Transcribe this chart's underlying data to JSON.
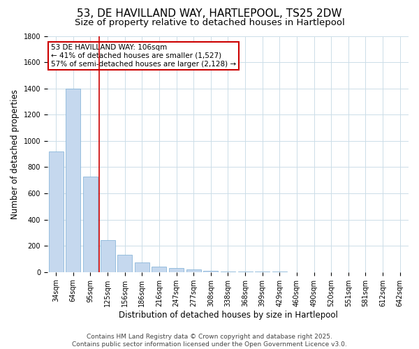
{
  "title": "53, DE HAVILLAND WAY, HARTLEPOOL, TS25 2DW",
  "subtitle": "Size of property relative to detached houses in Hartlepool",
  "xlabel": "Distribution of detached houses by size in Hartlepool",
  "ylabel": "Number of detached properties",
  "categories": [
    "34sqm",
    "64sqm",
    "95sqm",
    "125sqm",
    "156sqm",
    "186sqm",
    "216sqm",
    "247sqm",
    "277sqm",
    "308sqm",
    "338sqm",
    "368sqm",
    "399sqm",
    "429sqm",
    "460sqm",
    "490sqm",
    "520sqm",
    "551sqm",
    "581sqm",
    "612sqm",
    "642sqm"
  ],
  "values": [
    920,
    1400,
    730,
    245,
    130,
    75,
    40,
    30,
    20,
    10,
    5,
    3,
    2,
    2,
    1,
    1,
    1,
    0,
    0,
    0,
    0
  ],
  "bar_color": "#c5d8ee",
  "bar_edge_color": "#7aadd4",
  "red_line_x": 2.5,
  "annotation_text": "53 DE HAVILLAND WAY: 106sqm\n← 41% of detached houses are smaller (1,527)\n57% of semi-detached houses are larger (2,128) →",
  "annotation_box_facecolor": "#ffffff",
  "annotation_box_edgecolor": "#cc0000",
  "ylim": [
    0,
    1800
  ],
  "yticks": [
    0,
    200,
    400,
    600,
    800,
    1000,
    1200,
    1400,
    1600,
    1800
  ],
  "footer_line1": "Contains HM Land Registry data © Crown copyright and database right 2025.",
  "footer_line2": "Contains public sector information licensed under the Open Government Licence v3.0.",
  "bg_color": "#ffffff",
  "grid_color": "#ccdde8",
  "title_fontsize": 11,
  "subtitle_fontsize": 9.5,
  "axis_label_fontsize": 8.5,
  "tick_fontsize": 7,
  "annotation_fontsize": 7.5,
  "footer_fontsize": 6.5
}
